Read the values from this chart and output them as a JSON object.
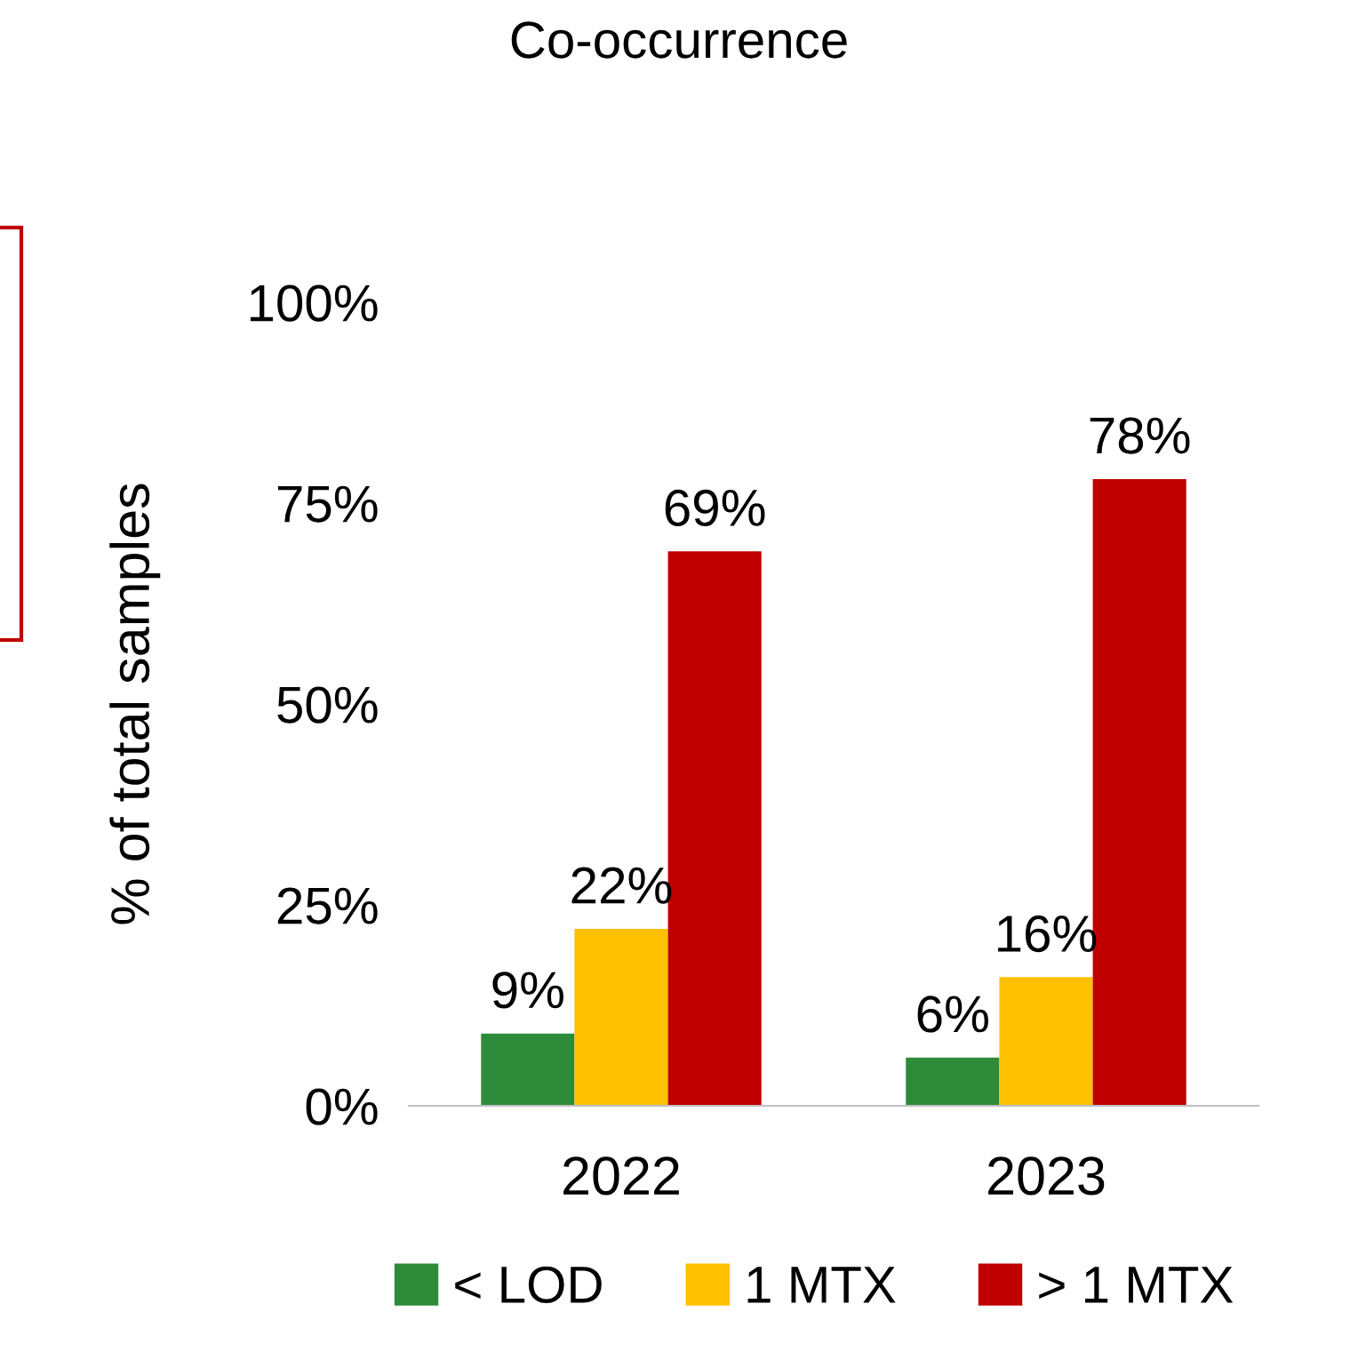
{
  "chart_data": {
    "type": "bar",
    "title": "Co-occurrence",
    "ylabel": "% of total samples",
    "categories": [
      "2022",
      "2023"
    ],
    "series": [
      {
        "name": "< LOD",
        "color": "#2e8b3a",
        "values": [
          9,
          6
        ],
        "value_labels": [
          "9%",
          "6%"
        ]
      },
      {
        "name": "1 MTX",
        "color": "#ffc000",
        "values": [
          22,
          16
        ],
        "value_labels": [
          "22%",
          "16%"
        ]
      },
      {
        "name": "> 1 MTX",
        "color": "#c00000",
        "values": [
          69,
          78
        ],
        "value_labels": [
          "69%",
          "78%"
        ]
      }
    ],
    "ylim": [
      0,
      100
    ],
    "yticks": [
      {
        "value": 0,
        "label": "0%"
      },
      {
        "value": 25,
        "label": "25%"
      },
      {
        "value": 50,
        "label": "50%"
      },
      {
        "value": 75,
        "label": "75%"
      },
      {
        "value": 100,
        "label": "100%"
      }
    ],
    "grid": false,
    "legend": "bottom"
  }
}
